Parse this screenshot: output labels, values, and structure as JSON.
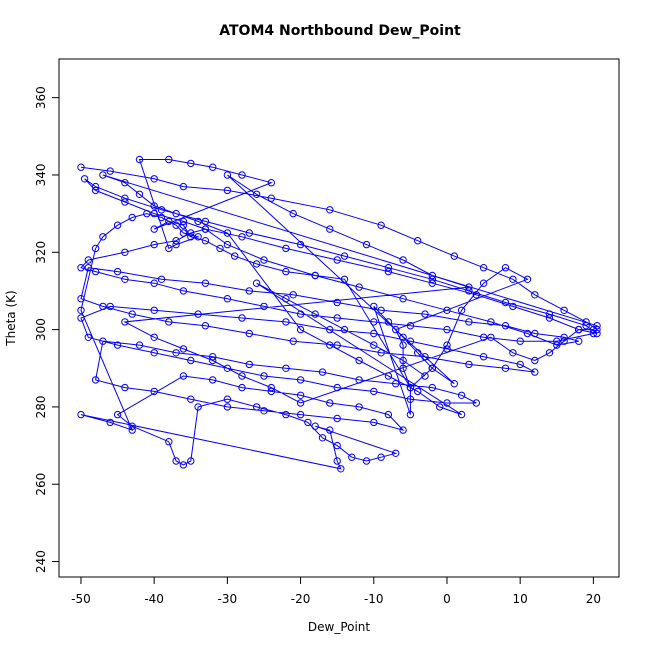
{
  "chart_data": {
    "type": "scatter",
    "title": "ATOM4 Northbound Dew_Point",
    "xlabel": "Dew_Point",
    "ylabel": "Theta (K)",
    "xlim": [
      -53,
      23.5
    ],
    "ylim": [
      236,
      370
    ],
    "xticks": [
      -50,
      -40,
      -30,
      -20,
      -10,
      0,
      10,
      20
    ],
    "yticks": [
      240,
      260,
      280,
      300,
      320,
      340,
      360
    ],
    "grid": false,
    "legend": "none",
    "color": "#0000ff",
    "series": [
      {
        "points": [
          [
            -50,
            342
          ],
          [
            -46,
            341
          ],
          [
            -40,
            339
          ],
          [
            -36,
            337
          ],
          [
            -30,
            336
          ],
          [
            -24,
            334
          ],
          [
            -16,
            331
          ],
          [
            -9,
            327
          ],
          [
            -4,
            323
          ],
          [
            1,
            319
          ],
          [
            5,
            316
          ],
          [
            9,
            313
          ],
          [
            12,
            309
          ],
          [
            16,
            305
          ],
          [
            19,
            302
          ],
          [
            20.5,
            300
          ],
          [
            20,
            299
          ],
          [
            15,
            297
          ],
          [
            10,
            297
          ],
          [
            5,
            298
          ],
          [
            0,
            300
          ],
          [
            -5,
            301
          ],
          [
            -10,
            302
          ],
          [
            -15,
            303
          ],
          [
            -20,
            304
          ],
          [
            -25,
            306
          ],
          [
            -30,
            308
          ],
          [
            -36,
            310
          ],
          [
            -40,
            312
          ],
          [
            -44,
            313
          ],
          [
            -48,
            315
          ],
          [
            -50,
            316
          ],
          [
            -49,
            318
          ],
          [
            -44,
            320
          ],
          [
            -40,
            322
          ],
          [
            -37,
            323
          ],
          [
            -35,
            325
          ],
          [
            -33,
            326
          ],
          [
            -28,
            324
          ],
          [
            -22,
            321
          ],
          [
            -15,
            318
          ],
          [
            -8,
            315
          ],
          [
            -2,
            312
          ],
          [
            4,
            309
          ],
          [
            9,
            306
          ],
          [
            14,
            303
          ],
          [
            18,
            300
          ],
          [
            20.5,
            299
          ],
          [
            19,
            301
          ],
          [
            14,
            304
          ],
          [
            8,
            307
          ],
          [
            3,
            310
          ],
          [
            -2,
            313
          ],
          [
            -8,
            316
          ],
          [
            -14,
            319
          ],
          [
            -20,
            322
          ],
          [
            -27,
            325
          ],
          [
            -33,
            328
          ],
          [
            -39,
            331
          ],
          [
            -44,
            334
          ],
          [
            -48,
            337
          ],
          [
            -49.5,
            339
          ],
          [
            -48,
            336
          ],
          [
            -44,
            333
          ],
          [
            -40,
            330
          ],
          [
            -36,
            328
          ],
          [
            -33,
            326
          ],
          [
            -30,
            322
          ],
          [
            -25,
            318
          ],
          [
            -18,
            314
          ],
          [
            -12,
            311
          ],
          [
            -6,
            308
          ],
          [
            0,
            305
          ],
          [
            6,
            302
          ],
          [
            11,
            299
          ],
          [
            15,
            296
          ],
          [
            18,
            297
          ],
          [
            16,
            298
          ],
          [
            12,
            299
          ],
          [
            8,
            301
          ],
          [
            3,
            302
          ],
          [
            -3,
            304
          ],
          [
            -9,
            305
          ],
          [
            -15,
            307
          ],
          [
            -21,
            309
          ],
          [
            -27,
            310
          ],
          [
            -33,
            312
          ],
          [
            -39,
            313
          ],
          [
            -45,
            315
          ],
          [
            -49,
            316
          ],
          [
            -50,
            308
          ],
          [
            -47,
            306
          ],
          [
            -43,
            304
          ],
          [
            -38,
            302
          ],
          [
            -33,
            301
          ],
          [
            -27,
            299
          ],
          [
            -21,
            297
          ],
          [
            -15,
            296
          ],
          [
            -9,
            294
          ],
          [
            -3,
            293
          ],
          [
            3,
            291
          ],
          [
            8,
            290
          ],
          [
            12,
            289
          ],
          [
            10,
            291
          ],
          [
            5,
            293
          ],
          [
            0,
            295
          ],
          [
            -5,
            297
          ],
          [
            -10,
            299
          ],
          [
            -16,
            300
          ],
          [
            -22,
            302
          ],
          [
            -28,
            303
          ],
          [
            -34,
            304
          ],
          [
            -40,
            305
          ],
          [
            -46,
            306
          ],
          [
            -50,
            303
          ],
          [
            -49,
            298
          ],
          [
            -45,
            296
          ],
          [
            -40,
            294
          ],
          [
            -35,
            292
          ],
          [
            -30,
            290
          ],
          [
            -25,
            288
          ],
          [
            -20,
            287
          ],
          [
            -15,
            285
          ],
          [
            -10,
            284
          ],
          [
            -5,
            282
          ],
          [
            0,
            281
          ],
          [
            4,
            281
          ],
          [
            2,
            283
          ],
          [
            -2,
            285
          ],
          [
            -7,
            286
          ],
          [
            -12,
            287
          ],
          [
            -17,
            289
          ],
          [
            -22,
            290
          ],
          [
            -27,
            291
          ],
          [
            -32,
            293
          ],
          [
            -37,
            294
          ],
          [
            -42,
            296
          ],
          [
            -47,
            297
          ],
          [
            -48,
            287
          ],
          [
            -44,
            285
          ],
          [
            -40,
            284
          ],
          [
            -35,
            282
          ],
          [
            -30,
            280
          ],
          [
            -25,
            279
          ],
          [
            -20,
            278
          ],
          [
            -15,
            277
          ],
          [
            -10,
            276
          ],
          [
            -6,
            274
          ],
          [
            -8,
            278
          ],
          [
            -12,
            280
          ],
          [
            -16,
            281
          ],
          [
            -20,
            283
          ],
          [
            -24,
            284
          ],
          [
            -28,
            285
          ],
          [
            -32,
            287
          ],
          [
            -36,
            288
          ],
          [
            -45,
            278
          ],
          [
            -43,
            275
          ],
          [
            -38,
            271
          ],
          [
            -37,
            266
          ],
          [
            -36,
            265
          ],
          [
            -35,
            266
          ],
          [
            -34,
            280
          ],
          [
            -30,
            282
          ],
          [
            -26,
            280
          ],
          [
            -22,
            278
          ],
          [
            -19,
            276
          ],
          [
            -17,
            272
          ],
          [
            -15,
            270
          ],
          [
            -13,
            267
          ],
          [
            -11,
            266
          ],
          [
            -9,
            267
          ],
          [
            -7,
            268
          ],
          [
            -18,
            275
          ],
          [
            -16,
            274
          ],
          [
            -15,
            266
          ],
          [
            -14.5,
            264
          ],
          [
            -50,
            278
          ],
          [
            -46,
            276
          ],
          [
            -43,
            274
          ],
          [
            -50,
            305
          ],
          [
            -48,
            321
          ],
          [
            -47,
            324
          ],
          [
            -45,
            327
          ],
          [
            -43,
            329
          ],
          [
            -41,
            330
          ],
          [
            -39,
            329
          ],
          [
            -37,
            327
          ],
          [
            -36,
            325
          ],
          [
            -34,
            324
          ],
          [
            -37,
            322
          ],
          [
            -38,
            321
          ],
          [
            -42,
            344
          ],
          [
            -38,
            344
          ],
          [
            -35,
            343
          ],
          [
            -32,
            342
          ],
          [
            -28,
            340
          ],
          [
            -24,
            338
          ],
          [
            -40,
            326
          ],
          [
            -38,
            328
          ],
          [
            -36,
            327
          ],
          [
            -35,
            324
          ],
          [
            -33,
            323
          ],
          [
            -31,
            321
          ],
          [
            -29,
            319
          ],
          [
            -26,
            317
          ],
          [
            -22,
            315
          ],
          [
            -18,
            314
          ],
          [
            -14,
            313
          ],
          [
            -5,
            285
          ],
          [
            -2,
            290
          ],
          [
            0,
            296
          ],
          [
            2,
            305
          ],
          [
            5,
            312
          ],
          [
            8,
            316
          ],
          [
            11,
            313
          ],
          [
            -7,
            300
          ],
          [
            -6,
            296
          ],
          [
            -6,
            290
          ],
          [
            -5,
            285
          ],
          [
            -5,
            278
          ],
          [
            -10,
            306
          ],
          [
            -8,
            302
          ],
          [
            -6,
            298
          ],
          [
            -4,
            294
          ],
          [
            -2,
            290
          ],
          [
            1,
            286
          ],
          [
            -30,
            340
          ],
          [
            -26,
            335
          ],
          [
            -21,
            330
          ],
          [
            -16,
            326
          ],
          [
            -11,
            322
          ],
          [
            -6,
            318
          ],
          [
            -2,
            314
          ],
          [
            3,
            311
          ],
          [
            -44,
            302
          ],
          [
            -40,
            298
          ],
          [
            -36,
            295
          ],
          [
            -32,
            292
          ],
          [
            -28,
            288
          ],
          [
            -24,
            285
          ],
          [
            -20,
            281
          ],
          [
            6,
            298
          ],
          [
            9,
            294
          ],
          [
            12,
            292
          ],
          [
            14,
            294
          ],
          [
            16,
            297
          ],
          [
            18,
            300
          ],
          [
            20,
            300
          ],
          [
            20.5,
            301
          ],
          [
            -47,
            340
          ],
          [
            -44,
            338
          ],
          [
            -42,
            335
          ],
          [
            -40,
            332
          ],
          [
            -37,
            330
          ],
          [
            -34,
            328
          ],
          [
            -30,
            325
          ],
          [
            -20,
            300
          ],
          [
            -16,
            296
          ],
          [
            -12,
            292
          ],
          [
            -8,
            288
          ],
          [
            -4,
            284
          ],
          [
            -1,
            280
          ],
          [
            2,
            278
          ],
          [
            -26,
            312
          ],
          [
            -22,
            308
          ],
          [
            -18,
            304
          ],
          [
            -14,
            300
          ],
          [
            -10,
            296
          ],
          [
            -6,
            292
          ],
          [
            -3,
            288
          ]
        ]
      }
    ]
  }
}
